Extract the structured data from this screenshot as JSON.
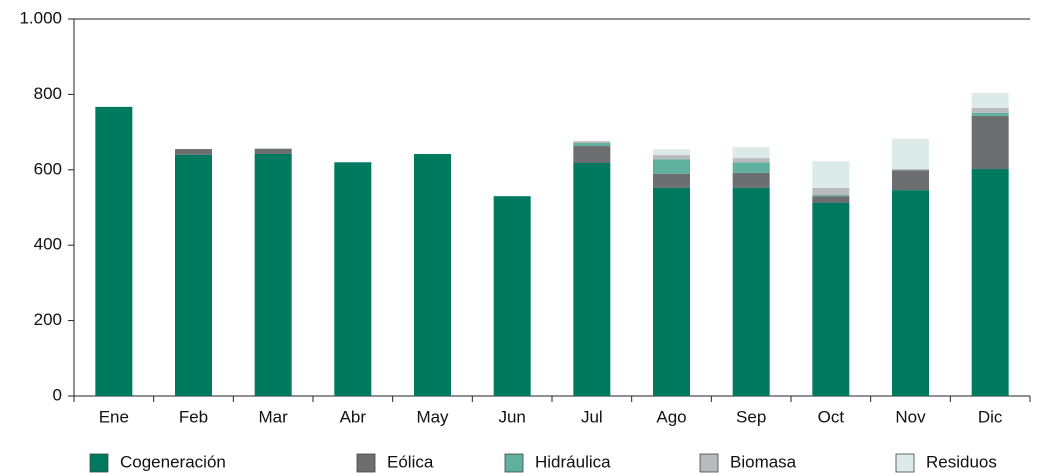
{
  "chart_data": {
    "type": "stacked_bar",
    "categories": [
      "Ene",
      "Feb",
      "Mar",
      "Abr",
      "May",
      "Jun",
      "Jul",
      "Ago",
      "Sep",
      "Oct",
      "Nov",
      "Dic"
    ],
    "series": [
      {
        "name": "Cogeneración",
        "color": "#007a5e",
        "values": [
          767,
          640,
          642,
          620,
          642,
          530,
          618,
          552,
          552,
          512,
          546,
          602
        ]
      },
      {
        "name": "Eólica",
        "color": "#6d6e71",
        "values": [
          0,
          15,
          14,
          0,
          0,
          0,
          45,
          37,
          40,
          18,
          53,
          141
        ]
      },
      {
        "name": "Hidráulica",
        "color": "#5fb09c",
        "values": [
          0,
          0,
          0,
          0,
          0,
          0,
          8,
          39,
          28,
          3,
          0,
          8
        ]
      },
      {
        "name": "Biomasa",
        "color": "#b9babd",
        "values": [
          0,
          0,
          0,
          0,
          0,
          0,
          5,
          11,
          11,
          19,
          3,
          13
        ]
      },
      {
        "name": "Residuos",
        "color": "#dcebe8",
        "values": [
          0,
          0,
          0,
          0,
          0,
          0,
          0,
          16,
          29,
          71,
          80,
          40
        ]
      }
    ],
    "ylim": [
      0,
      1000
    ],
    "yticks": [
      0,
      200,
      400,
      600,
      800,
      {
        "value": 1000,
        "label": "1.000"
      }
    ],
    "grid": false,
    "legend": "bottom"
  }
}
